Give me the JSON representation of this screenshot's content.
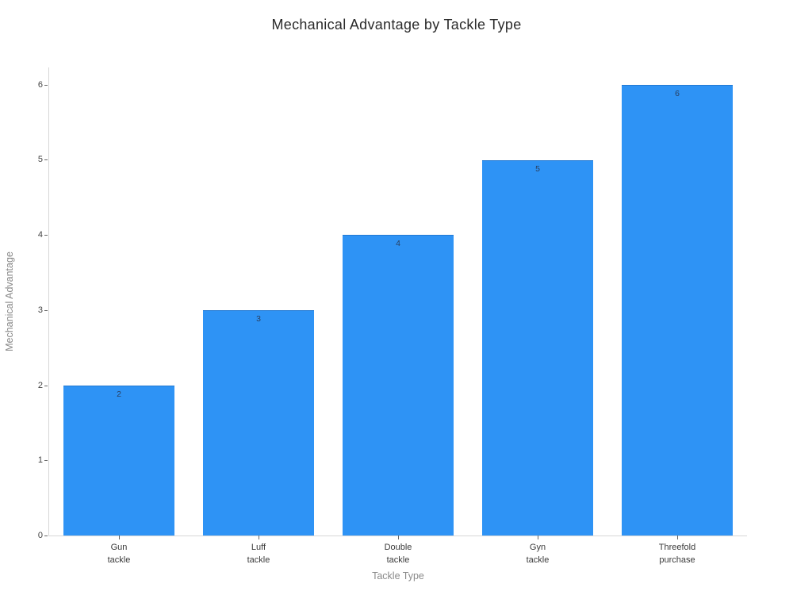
{
  "chart_data": {
    "type": "bar",
    "title": "Mechanical Advantage by Tackle Type",
    "xlabel": "Tackle Type",
    "ylabel": "Mechanical Advantage",
    "categories": [
      [
        "Gun",
        "tackle"
      ],
      [
        "Luff",
        "tackle"
      ],
      [
        "Double",
        "tackle"
      ],
      [
        "Gyn",
        "tackle"
      ],
      [
        "Threefold",
        "purchase"
      ]
    ],
    "values": [
      2,
      3,
      4,
      5,
      6
    ],
    "bar_labels": [
      "2",
      "3",
      "4",
      "5",
      "6"
    ],
    "yticks": [
      0,
      1,
      2,
      3,
      4,
      5,
      6
    ],
    "ylim": [
      0,
      6.23
    ],
    "grid": false,
    "legend_position": "none",
    "colors": {
      "bar_fill": "#2E93F5",
      "bar_edge": "#1d6fc4",
      "value_label": "#2a3f5f",
      "tick_label": "#424242",
      "category_label": "#3a3a3a",
      "axis_title": "#8a8a8a",
      "title": "#2a2a2a",
      "axis_line": "#d6d6d6",
      "background": "#ffffff"
    }
  }
}
